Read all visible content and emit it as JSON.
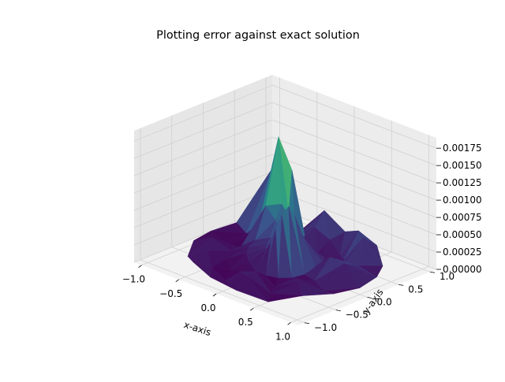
{
  "chart_data": {
    "type": "surface3d",
    "title": "Plotting error against exact solution",
    "xlabel": "x-axis",
    "ylabel": "y-axis",
    "zlabel": "",
    "xlim": [
      -1.1,
      1.1
    ],
    "ylim": [
      -1.1,
      1.1
    ],
    "zlim": [
      0,
      0.0019
    ],
    "x_ticks": [
      "−1.0",
      "−0.5",
      "0.0",
      "0.5",
      "1.0"
    ],
    "y_ticks": [
      "−1.0",
      "−0.5",
      "0.0",
      "0.5",
      "1.0"
    ],
    "z_ticks": [
      "0.00000",
      "0.00025",
      "0.00050",
      "0.00075",
      "0.00100",
      "0.00125",
      "0.00150",
      "0.00175"
    ],
    "colormap": [
      "#440154",
      "#3b528b",
      "#21918c",
      "#5ec962",
      "#fde725"
    ],
    "grid": true,
    "domain": "unit disk",
    "peak": {
      "x": -0.25,
      "y": 0.25,
      "z": 0.00185
    },
    "secondary_peaks": [
      {
        "x": 0.1,
        "y": -0.1,
        "z": 0.0011
      },
      {
        "x": 0.5,
        "y": 0.6,
        "z": 0.0009
      },
      {
        "x": -0.6,
        "y": 0.5,
        "z": 0.00075
      },
      {
        "x": 0.7,
        "y": 0.0,
        "z": 0.0006
      },
      {
        "x": 0.0,
        "y": 0.75,
        "z": 0.0007
      }
    ]
  }
}
